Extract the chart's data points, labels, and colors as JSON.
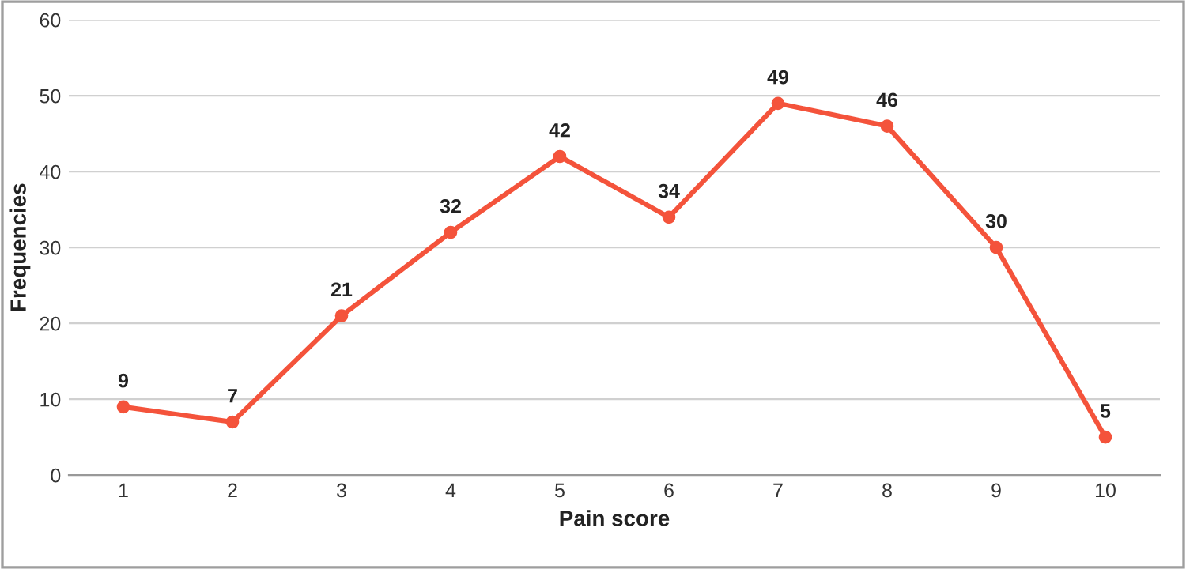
{
  "chart_data": {
    "type": "line",
    "xlabel": "Pain score",
    "ylabel": "Frequencies",
    "categories": [
      "1",
      "2",
      "3",
      "4",
      "5",
      "6",
      "7",
      "8",
      "9",
      "10"
    ],
    "series": [
      {
        "color": "#f4533b",
        "values": [
          9,
          7,
          21,
          32,
          42,
          34,
          49,
          46,
          30,
          5
        ]
      }
    ],
    "ylim": [
      0,
      60
    ],
    "yticks": [
      0,
      10,
      20,
      30,
      40,
      50,
      60
    ],
    "grid": "y",
    "marker": "circle",
    "line_style": "solid",
    "data_labels": true
  }
}
